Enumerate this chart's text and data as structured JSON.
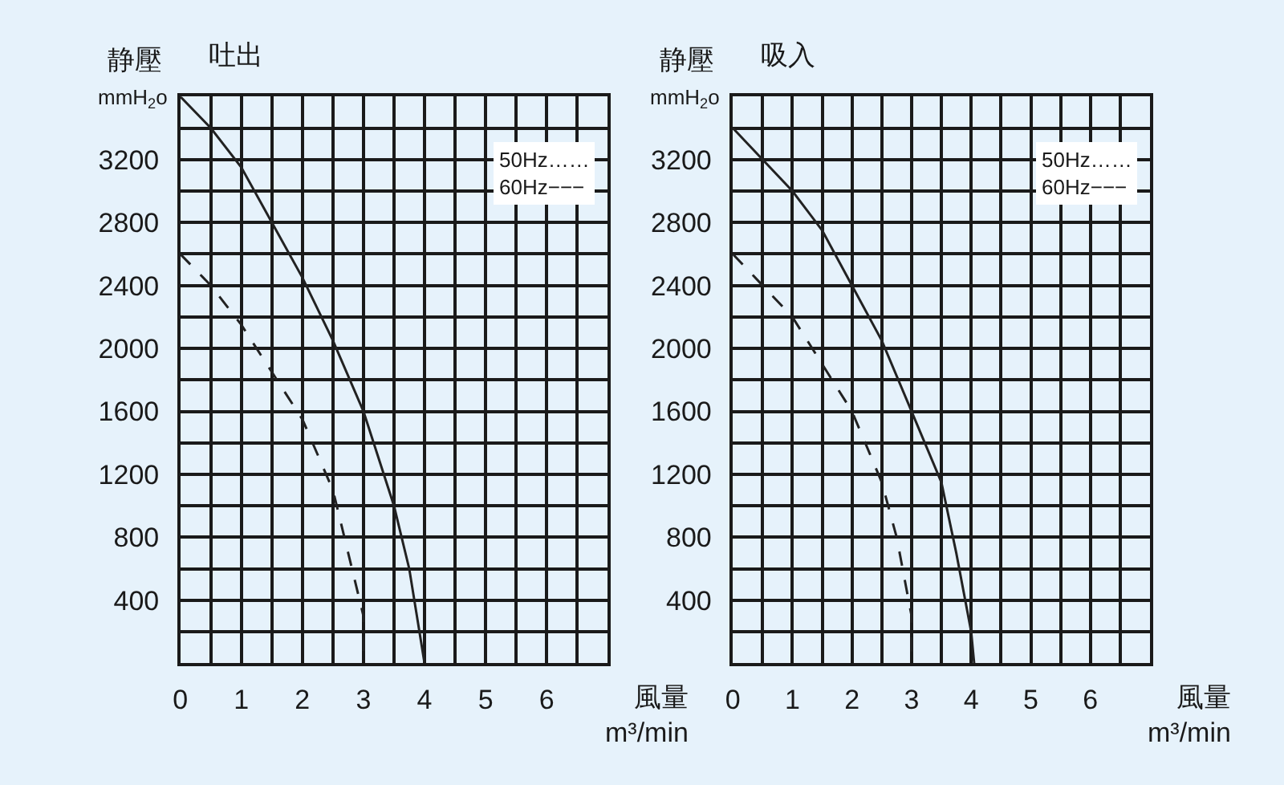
{
  "chart_data": [
    {
      "type": "line",
      "title": "吐出",
      "xlabel": "風量\nm³/min",
      "ylabel": "静壓\nmmH$_{2}$o",
      "annotations": [
        "50Hz……",
        "60Hz−−−"
      ],
      "xlim": [
        0,
        7
      ],
      "ylim": [
        0,
        3600
      ],
      "grid": true,
      "marker": "none",
      "xticks": [
        0,
        {
          "value": 0.5,
          "label": null
        },
        1,
        {
          "value": 1.5,
          "label": null
        },
        2,
        {
          "value": 2.5,
          "label": null
        },
        3,
        {
          "value": 3.5,
          "label": null
        },
        4,
        {
          "value": 4.5,
          "label": null
        },
        5,
        {
          "value": 5.5,
          "label": null
        },
        6,
        {
          "value": 6.5,
          "label": null
        },
        {
          "value": 7,
          "label": null
        }
      ],
      "yticks": [
        {
          "value": 0,
          "label": null
        },
        {
          "value": 200,
          "label": null
        },
        400,
        {
          "value": 600,
          "label": null
        },
        800,
        {
          "value": 1000,
          "label": null
        },
        1200,
        {
          "value": 1400,
          "label": null
        },
        1600,
        {
          "value": 1800,
          "label": null
        },
        2000,
        {
          "value": 2200,
          "label": null
        },
        2400,
        {
          "value": 2600,
          "label": null
        },
        2800,
        {
          "value": 3000,
          "label": null
        },
        3200,
        {
          "value": 3400,
          "label": null
        },
        {
          "value": 3600,
          "label": null
        }
      ],
      "series": [
        {
          "color": "#222222",
          "line_style": "solid",
          "x": [
            0,
            0.5,
            1,
            1.5,
            2,
            2.5,
            3,
            3.5,
            3.75,
            4
          ],
          "values": [
            3600,
            3400,
            3150,
            2800,
            2450,
            2050,
            1600,
            1000,
            600,
            0
          ]
        },
        {
          "color": "#222222",
          "line_style": "dashed",
          "x": [
            0,
            0.5,
            1,
            1.5,
            2,
            2.5,
            2.75,
            3,
            3
          ],
          "values": [
            2600,
            2400,
            2150,
            1850,
            1550,
            1100,
            700,
            300,
            0
          ]
        }
      ]
    },
    {
      "type": "line",
      "title": "吸入",
      "xlabel": "風量\nm³/min",
      "ylabel": "静壓\nmmH$_{2}$o",
      "annotations": [
        "50Hz……",
        "60Hz−−−"
      ],
      "xlim": [
        0,
        7
      ],
      "ylim": [
        0,
        3600
      ],
      "grid": true,
      "marker": "none",
      "xticks": [
        0,
        {
          "value": 0.5,
          "label": null
        },
        1,
        {
          "value": 1.5,
          "label": null
        },
        2,
        {
          "value": 2.5,
          "label": null
        },
        3,
        {
          "value": 3.5,
          "label": null
        },
        4,
        {
          "value": 4.5,
          "label": null
        },
        5,
        {
          "value": 5.5,
          "label": null
        },
        6,
        {
          "value": 6.5,
          "label": null
        },
        {
          "value": 7,
          "label": null
        }
      ],
      "yticks": [
        {
          "value": 0,
          "label": null
        },
        {
          "value": 200,
          "label": null
        },
        400,
        {
          "value": 600,
          "label": null
        },
        800,
        {
          "value": 1000,
          "label": null
        },
        1200,
        {
          "value": 1400,
          "label": null
        },
        1600,
        {
          "value": 1800,
          "label": null
        },
        2000,
        {
          "value": 2200,
          "label": null
        },
        2400,
        {
          "value": 2600,
          "label": null
        },
        2800,
        {
          "value": 3000,
          "label": null
        },
        3200,
        {
          "value": 3400,
          "label": null
        },
        {
          "value": 3600,
          "label": null
        }
      ],
      "series": [
        {
          "color": "#222222",
          "line_style": "solid",
          "x": [
            0,
            0.5,
            1,
            1.5,
            2,
            2.5,
            3,
            3.5,
            3.75,
            4,
            4.05
          ],
          "values": [
            3400,
            3200,
            3000,
            2750,
            2400,
            2050,
            1600,
            1150,
            700,
            200,
            0
          ]
        },
        {
          "color": "#222222",
          "line_style": "dashed",
          "x": [
            0,
            0.5,
            1,
            1.5,
            2,
            2.5,
            2.75,
            3,
            3
          ],
          "values": [
            2600,
            2400,
            2200,
            1900,
            1600,
            1150,
            800,
            300,
            0
          ]
        }
      ]
    }
  ]
}
